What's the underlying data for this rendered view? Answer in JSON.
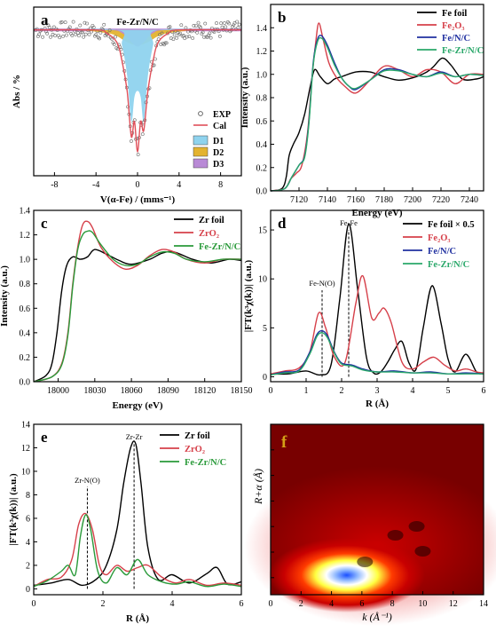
{
  "chart_data": [
    {
      "id": "a",
      "panel_label": "a",
      "type": "scatter",
      "title": "Fe-Zr/N/C",
      "xlabel": "V(α-Fe) / (mms⁻¹)",
      "ylabel": "Abs / %",
      "xlim": [
        -10,
        10
      ],
      "xticks": [
        "-8",
        "-4",
        "0",
        "4",
        "8"
      ],
      "legend": [
        "EXP",
        "Cal",
        "D1",
        "D2",
        "D3"
      ],
      "legend_placement": "bottom-right",
      "colors": {
        "exp": "#666666",
        "cal": "#e0505a",
        "D1": "#8fd3ee",
        "D2": "#e3b32f",
        "D3": "#b98ad6"
      },
      "series": [
        {
          "name": "D2",
          "x": [
            -10,
            -6,
            -3,
            -2,
            -1,
            0,
            1,
            2,
            3,
            6,
            10
          ],
          "values": [
            0,
            0,
            -0.01,
            -0.02,
            -0.04,
            -0.05,
            -0.04,
            -0.02,
            -0.01,
            0,
            0
          ]
        },
        {
          "name": "D3",
          "x": [
            -10,
            -3,
            -1.5,
            -0.6,
            0,
            0.6,
            1.5,
            3,
            10
          ],
          "values": [
            0,
            0,
            -0.01,
            -0.04,
            -0.055,
            -0.04,
            -0.01,
            0,
            0
          ]
        },
        {
          "name": "D1",
          "x": [
            -10,
            -2,
            -1.5,
            -1,
            -0.6,
            -0.3,
            0,
            0.3,
            0.6,
            1,
            1.5,
            2,
            10
          ],
          "values": [
            0,
            0,
            -0.05,
            -0.15,
            -0.3,
            -0.22,
            -0.2,
            -0.22,
            -0.3,
            -0.15,
            -0.05,
            0,
            0
          ]
        },
        {
          "name": "Cal",
          "x": [
            -10,
            -4,
            -3,
            -2,
            -1.5,
            -1,
            -0.6,
            -0.3,
            0,
            0.3,
            0.6,
            1,
            1.5,
            2,
            3,
            4,
            10
          ],
          "values": [
            0,
            0,
            -0.01,
            -0.04,
            -0.1,
            -0.2,
            -0.35,
            -0.3,
            -0.4,
            -0.3,
            -0.33,
            -0.2,
            -0.1,
            -0.04,
            -0.01,
            0,
            0
          ]
        }
      ]
    },
    {
      "id": "b",
      "panel_label": "b",
      "type": "line",
      "xlabel": "Energy (eV)",
      "ylabel": "Intensity (a.u.)",
      "xlim": [
        7100,
        7250
      ],
      "ylim": [
        0,
        1.6
      ],
      "xticks": [
        7120,
        7140,
        7160,
        7180,
        7200,
        7220,
        7240
      ],
      "yticks": [
        0,
        0.2,
        0.4,
        0.6,
        0.8,
        1.0,
        1.2,
        1.4
      ],
      "legend_placement": "top-right",
      "series": [
        {
          "name": "Fe foil",
          "color": "#000000",
          "x": [
            7100,
            7108,
            7111,
            7113,
            7116,
            7120,
            7124,
            7128,
            7131,
            7135,
            7140,
            7145,
            7150,
            7160,
            7170,
            7180,
            7190,
            7200,
            7210,
            7215,
            7221,
            7227,
            7235,
            7245,
            7250
          ],
          "values": [
            0,
            0.02,
            0.12,
            0.3,
            0.4,
            0.5,
            0.66,
            0.9,
            1.04,
            0.98,
            0.92,
            0.96,
            0.98,
            1.02,
            1.02,
            0.98,
            0.95,
            0.97,
            1.02,
            1.07,
            1.14,
            1.08,
            0.96,
            0.96,
            0.98
          ]
        },
        {
          "name": "Fe₂O₃",
          "color": "#d6404a",
          "x": [
            7100,
            7110,
            7114,
            7118,
            7122,
            7126,
            7129,
            7132,
            7134,
            7137,
            7141,
            7146,
            7152,
            7160,
            7170,
            7180,
            7190,
            7200,
            7210,
            7220,
            7230,
            7240,
            7250
          ],
          "values": [
            0,
            0.02,
            0.1,
            0.15,
            0.22,
            0.5,
            0.95,
            1.3,
            1.44,
            1.3,
            1.1,
            0.98,
            0.9,
            0.84,
            0.95,
            1.07,
            1.04,
            0.98,
            1.04,
            1.02,
            0.92,
            1.0,
            1.0
          ]
        },
        {
          "name": "Fe/N/C",
          "color": "#2030a0",
          "x": [
            7100,
            7110,
            7115,
            7120,
            7124,
            7127,
            7130,
            7133,
            7136,
            7140,
            7145,
            7150,
            7155,
            7160,
            7170,
            7180,
            7190,
            7200,
            7210,
            7220,
            7230,
            7240,
            7250
          ],
          "values": [
            0,
            0.02,
            0.12,
            0.22,
            0.3,
            0.6,
            1.1,
            1.3,
            1.33,
            1.25,
            1.1,
            0.97,
            0.9,
            0.87,
            0.95,
            1.04,
            1.04,
            1.0,
            0.98,
            1.02,
            0.98,
            1.0,
            0.99
          ]
        },
        {
          "name": "Fe-Zr/N/C",
          "color": "#2aa86a",
          "x": [
            7100,
            7110,
            7115,
            7120,
            7124,
            7127,
            7130,
            7133,
            7136,
            7140,
            7145,
            7150,
            7155,
            7160,
            7170,
            7180,
            7190,
            7200,
            7210,
            7220,
            7230,
            7240,
            7250
          ],
          "values": [
            0,
            0.02,
            0.12,
            0.22,
            0.29,
            0.58,
            1.08,
            1.28,
            1.31,
            1.23,
            1.08,
            0.97,
            0.9,
            0.88,
            0.95,
            1.03,
            1.03,
            1.0,
            0.98,
            1.01,
            0.98,
            1.0,
            0.99
          ]
        }
      ]
    },
    {
      "id": "c",
      "panel_label": "c",
      "type": "line",
      "xlabel": "Energy (eV)",
      "ylabel": "Intensity (a.u.)",
      "xlim": [
        17980,
        18150
      ],
      "ylim": [
        0,
        1.4
      ],
      "xticks": [
        18000,
        18030,
        18060,
        18090,
        18120,
        18150
      ],
      "yticks": [
        0,
        0.2,
        0.4,
        0.6,
        0.8,
        1.0,
        1.2,
        1.4
      ],
      "legend_placement": "top-right",
      "series": [
        {
          "name": "Zr foil",
          "color": "#000000",
          "x": [
            17980,
            17990,
            17995,
            17999,
            18003,
            18007,
            18012,
            18018,
            18024,
            18030,
            18040,
            18050,
            18060,
            18075,
            18085,
            18095,
            18110,
            18125,
            18140,
            18150
          ],
          "values": [
            0,
            0.05,
            0.15,
            0.4,
            0.75,
            0.95,
            1.02,
            1.0,
            1.02,
            1.08,
            1.04,
            0.99,
            0.96,
            1.0,
            1.05,
            1.06,
            1.0,
            0.97,
            1.0,
            0.99
          ]
        },
        {
          "name": "ZrO₂",
          "color": "#d6404a",
          "x": [
            17980,
            17995,
            18003,
            18008,
            18012,
            18016,
            18020,
            18024,
            18028,
            18035,
            18045,
            18055,
            18065,
            18075,
            18085,
            18095,
            18105,
            18120,
            18135,
            18150
          ],
          "values": [
            0,
            0.04,
            0.15,
            0.4,
            0.8,
            1.1,
            1.28,
            1.31,
            1.26,
            1.1,
            0.98,
            0.92,
            0.95,
            1.03,
            1.08,
            1.06,
            1.0,
            0.97,
            1.0,
            1.0
          ]
        },
        {
          "name": "Fe-Zr/N/C",
          "color": "#2a9a3a",
          "x": [
            17980,
            17995,
            18003,
            18008,
            18012,
            18016,
            18020,
            18024,
            18028,
            18035,
            18045,
            18055,
            18065,
            18075,
            18085,
            18095,
            18105,
            18120,
            18135,
            18150
          ],
          "values": [
            0,
            0.04,
            0.14,
            0.38,
            0.78,
            1.08,
            1.2,
            1.23,
            1.22,
            1.12,
            1.0,
            0.95,
            0.96,
            1.02,
            1.06,
            1.05,
            1.0,
            0.98,
            1.0,
            1.0
          ]
        }
      ]
    },
    {
      "id": "d",
      "panel_label": "d",
      "type": "line",
      "xlabel": "R (Å)",
      "ylabel": "|FT(k³χ(k))| (a.u.)",
      "xlim": [
        0,
        6
      ],
      "ylim": [
        -0.5,
        17
      ],
      "xticks": [
        0,
        1,
        2,
        3,
        4,
        5,
        6
      ],
      "yticks": [
        0,
        5,
        10,
        15
      ],
      "annotations": [
        "Fe-N(O)",
        "Fe-Fe"
      ],
      "annotation_x": [
        1.45,
        2.2
      ],
      "legend_placement": "top-right",
      "series": [
        {
          "name": "Fe foil × 0.5",
          "color": "#000000",
          "x": [
            0,
            0.5,
            1.0,
            1.4,
            1.7,
            1.95,
            2.2,
            2.45,
            2.7,
            2.9,
            3.1,
            3.3,
            3.5,
            3.7,
            3.9,
            4.1,
            4.3,
            4.55,
            4.8,
            5.0,
            5.2,
            5.5,
            5.8,
            6.0
          ],
          "values": [
            0.3,
            0.3,
            0.6,
            0.2,
            1.2,
            8.0,
            15.6,
            9.0,
            2.0,
            0.4,
            0.5,
            1.5,
            2.8,
            3.6,
            1.4,
            0.8,
            5.0,
            9.3,
            5.5,
            1.8,
            0.5,
            2.3,
            0.5,
            0.3
          ]
        },
        {
          "name": "Fe₂O₃",
          "color": "#d6404a",
          "x": [
            0,
            0.4,
            0.8,
            1.1,
            1.35,
            1.55,
            1.8,
            2.1,
            2.4,
            2.6,
            2.85,
            3.05,
            3.2,
            3.4,
            3.7,
            4.0,
            4.3,
            4.6,
            4.9,
            5.2,
            5.5,
            5.8,
            6.0
          ],
          "values": [
            0.3,
            0.6,
            0.9,
            2.5,
            6.5,
            5.0,
            2.0,
            1.5,
            7.5,
            10.3,
            6.0,
            6.5,
            7.0,
            5.5,
            1.5,
            0.8,
            1.5,
            2.0,
            1.2,
            0.6,
            0.8,
            0.5,
            0.4
          ]
        },
        {
          "name": "Fe/N/C",
          "color": "#2030a0",
          "x": [
            0,
            0.4,
            0.8,
            1.1,
            1.3,
            1.45,
            1.6,
            1.8,
            2.0,
            2.3,
            2.6,
            3.0,
            3.5,
            4.0,
            4.5,
            5.0,
            5.5,
            6.0
          ],
          "values": [
            0.2,
            0.5,
            0.7,
            2.5,
            4.3,
            4.7,
            4.2,
            2.5,
            1.4,
            1.2,
            0.8,
            0.5,
            0.6,
            0.4,
            0.5,
            0.3,
            0.4,
            0.3
          ]
        },
        {
          "name": "Fe-Zr/N/C",
          "color": "#2aa86a",
          "x": [
            0,
            0.4,
            0.8,
            1.1,
            1.3,
            1.45,
            1.6,
            1.8,
            2.0,
            2.3,
            2.6,
            3.0,
            3.5,
            4.0,
            4.5,
            5.0,
            5.5,
            6.0
          ],
          "values": [
            0.2,
            0.4,
            0.6,
            2.3,
            4.1,
            4.5,
            4.0,
            2.4,
            1.3,
            1.1,
            0.7,
            0.5,
            0.5,
            0.4,
            0.4,
            0.3,
            0.3,
            0.3
          ]
        }
      ]
    },
    {
      "id": "e",
      "panel_label": "e",
      "type": "line",
      "xlabel": "R (Å)",
      "ylabel": "|FT(k³χ(k))| (a.u.)",
      "xlim": [
        0,
        6
      ],
      "ylim": [
        -0.5,
        14
      ],
      "xticks": [
        0,
        2,
        4,
        6
      ],
      "yticks": [
        0,
        2,
        4,
        6,
        8,
        10,
        12,
        14
      ],
      "annotations": [
        "Zr-N(O)",
        "Zr-Zr"
      ],
      "annotation_x": [
        1.55,
        2.9
      ],
      "legend_placement": "top-right",
      "series": [
        {
          "name": "Zr foil",
          "color": "#000000",
          "x": [
            0,
            0.5,
            1.0,
            1.4,
            1.8,
            2.1,
            2.4,
            2.6,
            2.8,
            2.95,
            3.1,
            3.3,
            3.6,
            4.0,
            4.5,
            5.0,
            5.3,
            5.6,
            6.0
          ],
          "values": [
            0.3,
            0.5,
            0.8,
            0.3,
            0.8,
            2.0,
            5.0,
            9.0,
            12.0,
            12.3,
            9.0,
            3.5,
            0.8,
            1.2,
            0.5,
            1.3,
            1.8,
            0.4,
            0.6
          ]
        },
        {
          "name": "ZrO₂",
          "color": "#d6404a",
          "x": [
            0,
            0.4,
            0.8,
            1.1,
            1.3,
            1.5,
            1.7,
            1.9,
            2.1,
            2.4,
            2.7,
            3.0,
            3.3,
            3.7,
            4.1,
            4.5,
            5.0,
            5.5,
            6.0
          ],
          "values": [
            0.2,
            0.8,
            1.0,
            2.5,
            5.5,
            6.4,
            5.0,
            2.0,
            1.2,
            2.0,
            1.5,
            1.8,
            2.0,
            1.0,
            0.5,
            0.8,
            0.3,
            0.5,
            0.3
          ]
        },
        {
          "name": "Fe-Zr/N/C",
          "color": "#2a9a3a",
          "x": [
            0,
            0.4,
            0.8,
            1.0,
            1.2,
            1.35,
            1.5,
            1.65,
            1.85,
            2.1,
            2.4,
            2.7,
            3.0,
            3.3,
            3.7,
            4.1,
            4.5,
            5.0,
            5.5,
            6.0
          ],
          "values": [
            0.2,
            0.7,
            1.5,
            2.0,
            1.2,
            4.5,
            6.3,
            5.0,
            1.5,
            0.5,
            1.8,
            1.2,
            2.5,
            1.2,
            0.6,
            0.4,
            0.6,
            0.2,
            0.4,
            0.2
          ]
        }
      ]
    },
    {
      "id": "f",
      "panel_label": "f",
      "type": "heatmap",
      "xlabel": "k (Å⁻¹)",
      "ylabel": "R+α (Å)",
      "xlim": [
        0,
        14
      ],
      "xticks": [
        0,
        2,
        4,
        6,
        8,
        10,
        12,
        14
      ],
      "hotspot": {
        "k": 5.0,
        "intensity": "max"
      }
    }
  ]
}
